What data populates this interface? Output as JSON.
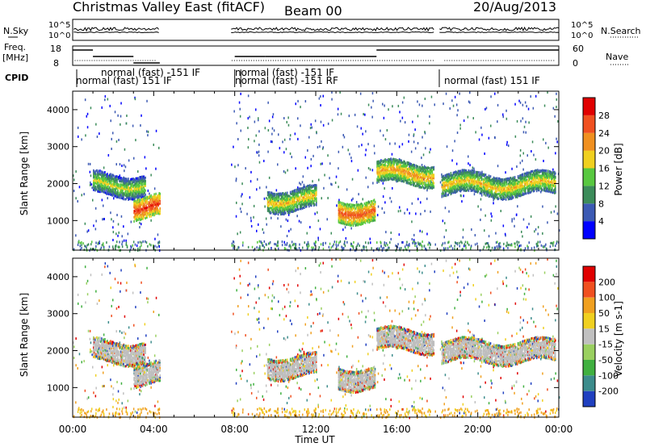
{
  "header": {
    "title": "Christmas Valley East (fitACF)",
    "beam": "Beam 00",
    "date": "20/Aug/2013"
  },
  "chart_data": [
    {
      "type": "line",
      "panel": "noise",
      "left_label": "N.Sky",
      "right_label": "N.Search",
      "yticks": [
        "10^5",
        "10^0"
      ],
      "log_scale": true
    },
    {
      "type": "line",
      "panel": "frequency",
      "left_label": [
        "Freq.",
        "[MHz]"
      ],
      "right_label": "Nave",
      "yticks_left": [
        "18",
        "8"
      ],
      "yticks_right": [
        "60",
        "0"
      ],
      "ylim_left": [
        8,
        18
      ],
      "ylim_right": [
        0,
        60
      ]
    },
    {
      "type": "table",
      "panel": "cpid",
      "label": "CPID",
      "labels": [
        "normal (fast) 151 IF",
        "normal (fast) -151 IF",
        "normal (fast) -151 IF",
        "normal (fast) -151 RF",
        "normal (fast) 151 IF"
      ]
    },
    {
      "type": "heatmap",
      "panel": "power",
      "ylabel": "Slant Range [km]",
      "yticks": [
        1000,
        2000,
        3000,
        4000
      ],
      "ylim": [
        200,
        4500
      ],
      "xlim_hours": [
        0,
        24
      ],
      "colorbar_label": "Power [dB]",
      "colorbar_ticks": [
        4,
        8,
        12,
        16,
        20,
        24,
        28
      ],
      "colorbar_colors": [
        "#0000ff",
        "#3c5ab4",
        "#3c8c5a",
        "#58c840",
        "#f0d020",
        "#f09020",
        "#f05020",
        "#e00000"
      ],
      "no_data_intervals_hours": [
        [
          4.3,
          7.8
        ],
        [
          17.9,
          18.1
        ]
      ],
      "scatter_bands": [
        {
          "t_start": 1.0,
          "t_end": 3.6,
          "range_km": 2000,
          "power_db": 18
        },
        {
          "t_start": 3.0,
          "t_end": 4.3,
          "range_km": 1400,
          "power_db": 28
        },
        {
          "t_start": 9.6,
          "t_end": 12.0,
          "range_km": 1600,
          "power_db": 20
        },
        {
          "t_start": 13.1,
          "t_end": 14.9,
          "range_km": 1300,
          "power_db": 26
        },
        {
          "t_start": 15.0,
          "t_end": 17.8,
          "range_km": 2300,
          "power_db": 22
        },
        {
          "t_start": 18.2,
          "t_end": 23.8,
          "range_km": 2000,
          "power_db": 20
        }
      ]
    },
    {
      "type": "heatmap",
      "panel": "velocity",
      "ylabel": "Slant Range [km]",
      "yticks": [
        1000,
        2000,
        3000,
        4000
      ],
      "ylim": [
        200,
        4500
      ],
      "xlabel": "Time UT",
      "xtick_labels": [
        "00:00",
        "04:00",
        "08:00",
        "12:00",
        "16:00",
        "20:00",
        "00:00"
      ],
      "xtick_hours": [
        0,
        4,
        8,
        12,
        16,
        20,
        24
      ],
      "colorbar_label": "Velocity [m s-1]",
      "colorbar_ticks": [
        "200",
        "100",
        "50",
        "15",
        "-15",
        "-50",
        "-100",
        "-200"
      ],
      "colorbar_colors": [
        "#2040c0",
        "#3c8c8c",
        "#40b040",
        "#9ad060",
        "#c0c0c0",
        "#f0d020",
        "#f0a020",
        "#f05020",
        "#e00000"
      ],
      "ground_scatter_color": "#bebebe"
    }
  ]
}
